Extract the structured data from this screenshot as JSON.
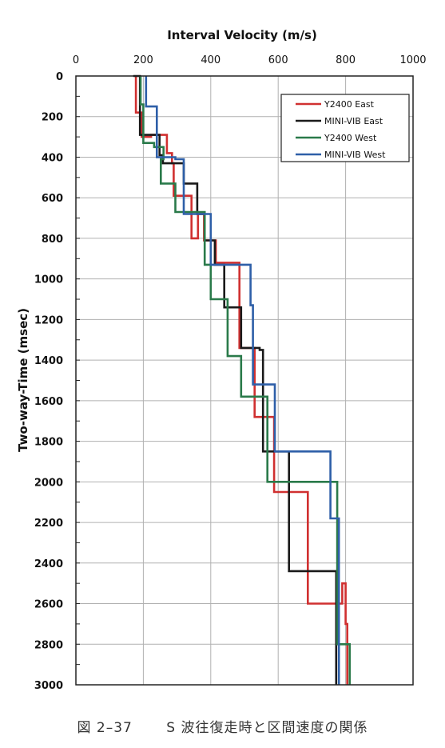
{
  "chart_data": {
    "type": "line",
    "title": "",
    "xlabel": "Interval Velocity (m/s)",
    "ylabel": "Two-way-Time (msec)",
    "xlim": [
      0,
      1000
    ],
    "ylim": [
      0,
      3000
    ],
    "x_axis_position": "top",
    "y_axis_inverted": true,
    "grid": true,
    "xticks": [
      0,
      200,
      400,
      600,
      800,
      1000
    ],
    "yticks": [
      0,
      200,
      400,
      600,
      800,
      1000,
      1200,
      1400,
      1600,
      1800,
      2000,
      2200,
      2400,
      2600,
      2800,
      3000
    ],
    "legend_position": "top-right",
    "series": [
      {
        "name": "Y2400 East",
        "color": "#d03030",
        "points": [
          [
            178,
            0
          ],
          [
            178,
            180
          ],
          [
            195,
            180
          ],
          [
            195,
            300
          ],
          [
            223,
            300
          ],
          [
            223,
            290
          ],
          [
            270,
            290
          ],
          [
            270,
            380
          ],
          [
            285,
            380
          ],
          [
            285,
            430
          ],
          [
            290,
            430
          ],
          [
            290,
            590
          ],
          [
            343,
            590
          ],
          [
            343,
            800
          ],
          [
            362,
            800
          ],
          [
            362,
            680
          ],
          [
            380,
            680
          ],
          [
            380,
            810
          ],
          [
            415,
            810
          ],
          [
            415,
            920
          ],
          [
            485,
            920
          ],
          [
            485,
            1340
          ],
          [
            530,
            1340
          ],
          [
            530,
            1680
          ],
          [
            588,
            1680
          ],
          [
            588,
            2050
          ],
          [
            688,
            2050
          ],
          [
            688,
            2600
          ],
          [
            790,
            2600
          ],
          [
            790,
            2500
          ],
          [
            800,
            2500
          ],
          [
            800,
            2700
          ],
          [
            805,
            2700
          ],
          [
            805,
            3000
          ]
        ]
      },
      {
        "name": "MINI-VIB East",
        "color": "#1a1a1a",
        "points": [
          [
            170,
            0
          ],
          [
            190,
            0
          ],
          [
            190,
            290
          ],
          [
            248,
            290
          ],
          [
            248,
            390
          ],
          [
            258,
            390
          ],
          [
            258,
            430
          ],
          [
            320,
            430
          ],
          [
            320,
            530
          ],
          [
            360,
            530
          ],
          [
            360,
            680
          ],
          [
            382,
            680
          ],
          [
            382,
            810
          ],
          [
            412,
            810
          ],
          [
            412,
            930
          ],
          [
            440,
            930
          ],
          [
            440,
            1140
          ],
          [
            490,
            1140
          ],
          [
            490,
            1340
          ],
          [
            545,
            1340
          ],
          [
            545,
            1350
          ],
          [
            555,
            1350
          ],
          [
            555,
            1850
          ],
          [
            632,
            1850
          ],
          [
            632,
            2440
          ],
          [
            772,
            2440
          ],
          [
            772,
            3000
          ]
        ]
      },
      {
        "name": "Y2400 West",
        "color": "#2a7a4a",
        "points": [
          [
            192,
            0
          ],
          [
            192,
            140
          ],
          [
            200,
            140
          ],
          [
            200,
            330
          ],
          [
            232,
            330
          ],
          [
            232,
            350
          ],
          [
            260,
            350
          ],
          [
            260,
            410
          ],
          [
            252,
            410
          ],
          [
            252,
            530
          ],
          [
            295,
            530
          ],
          [
            295,
            670
          ],
          [
            382,
            670
          ],
          [
            382,
            930
          ],
          [
            400,
            930
          ],
          [
            400,
            1100
          ],
          [
            450,
            1100
          ],
          [
            450,
            1380
          ],
          [
            490,
            1380
          ],
          [
            490,
            1580
          ],
          [
            568,
            1580
          ],
          [
            568,
            2000
          ],
          [
            775,
            2000
          ],
          [
            775,
            2800
          ],
          [
            812,
            2800
          ],
          [
            812,
            3000
          ]
        ]
      },
      {
        "name": "MINI-VIB West",
        "color": "#2e5fa8",
        "points": [
          [
            208,
            0
          ],
          [
            208,
            150
          ],
          [
            240,
            150
          ],
          [
            240,
            400
          ],
          [
            295,
            400
          ],
          [
            295,
            410
          ],
          [
            320,
            410
          ],
          [
            320,
            680
          ],
          [
            400,
            680
          ],
          [
            400,
            930
          ],
          [
            518,
            930
          ],
          [
            518,
            1130
          ],
          [
            525,
            1130
          ],
          [
            525,
            1520
          ],
          [
            590,
            1520
          ],
          [
            590,
            1850
          ],
          [
            755,
            1850
          ],
          [
            755,
            2180
          ],
          [
            780,
            2180
          ],
          [
            780,
            3000
          ]
        ]
      }
    ]
  },
  "caption": {
    "figure_no": "図 2–37",
    "text": "S 波往復走時と区間速度の関係"
  }
}
